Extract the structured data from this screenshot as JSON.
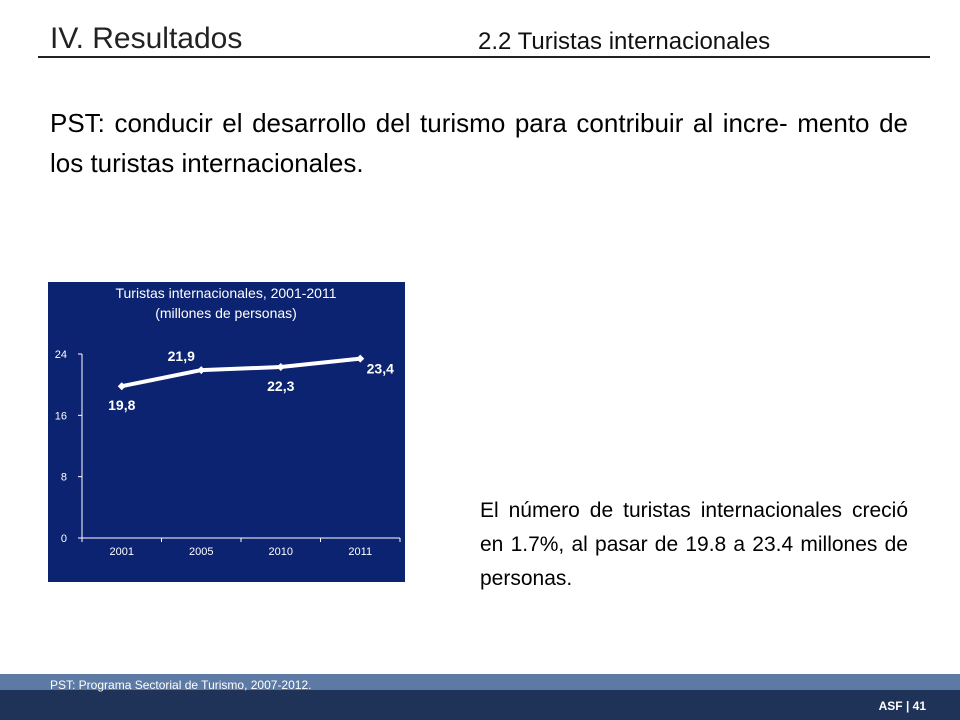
{
  "header": {
    "section_title": "IV. Resultados",
    "subsection_title": "2.2 Turistas internacionales"
  },
  "main_text": "PST: conducir el desarrollo del turismo para contribuir al incre- mento de los turistas internacionales.",
  "side_text": "El número de turistas internacionales creció en 1.7%, al pasar de 19.8 a 23.4 millones de personas.",
  "footer": {
    "footnote": "PST: Programa Sectorial de Turismo, 2007-2012.",
    "page_tag": "ASF | 41"
  },
  "colors": {
    "chart_background": "#0b2370",
    "line": "#ffffff",
    "footer_dark": "#1f3358",
    "footer_light": "#5c7aa3"
  },
  "chart_data": {
    "type": "line",
    "title": "Turistas internacionales, 2001-2011",
    "subtitle": "(millones de personas)",
    "categories": [
      "2001",
      "2005",
      "2010",
      "2011"
    ],
    "series": [
      {
        "values": [
          19.8,
          21.9,
          22.3,
          23.4
        ]
      }
    ],
    "data_labels": [
      "19,8",
      "21,9",
      "22,3",
      "23,4"
    ],
    "data_label_positions": [
      "below",
      "above",
      "below",
      "right"
    ],
    "yticks": [
      "0",
      "8",
      "16",
      "24"
    ],
    "ylim": [
      0,
      24
    ],
    "xlabel": "",
    "ylabel": "",
    "grid": false,
    "legend": "none"
  }
}
